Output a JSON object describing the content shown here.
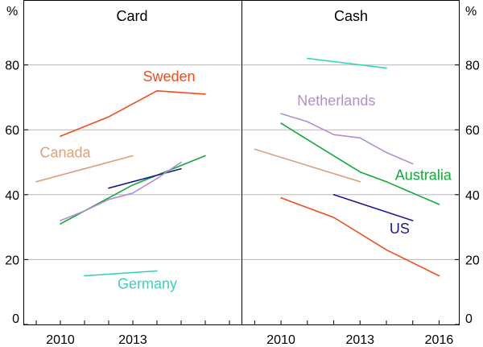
{
  "chart_data": {
    "type": "line",
    "y_unit": "%",
    "ylim": [
      0,
      100
    ],
    "yticks": [
      0,
      20,
      40,
      60,
      80
    ],
    "grid": true,
    "panels": [
      {
        "id": "card",
        "title": "Card",
        "xlim": [
          2008.5,
          2017.5
        ],
        "xticks": [
          2010,
          2013
        ],
        "series": [
          {
            "name": "Sweden",
            "color": "#f04e1d",
            "x": [
              2010,
              2012,
              2014,
              2016
            ],
            "y": [
              58,
              64,
              72,
              71
            ]
          },
          {
            "name": "Canada",
            "color": "#d9a27f",
            "x": [
              2009,
              2013
            ],
            "y": [
              44,
              52
            ]
          },
          {
            "name": "Australia",
            "color": "#14a83b",
            "x": [
              2010,
              2011,
              2012,
              2013,
              2014,
              2015,
              2016
            ],
            "y": [
              31,
              35,
              39,
              43,
              46,
              49,
              52
            ]
          },
          {
            "name": "US",
            "color": "#1b1b8f",
            "x": [
              2012,
              2015
            ],
            "y": [
              42,
              48
            ]
          },
          {
            "name": "Netherlands",
            "color": "#b08fd0",
            "x": [
              2010,
              2011,
              2012,
              2013,
              2014,
              2015
            ],
            "y": [
              32,
              35,
              38.5,
              40.5,
              45,
              50
            ]
          },
          {
            "name": "Germany",
            "color": "#37d3bb",
            "x": [
              2011,
              2014
            ],
            "y": [
              15,
              16.5
            ]
          }
        ],
        "labels": [
          {
            "series": "Sweden",
            "text": "Sweden",
            "x": 2014.5,
            "y": 75
          },
          {
            "series": "Canada",
            "text": "Canada",
            "x": 2010.2,
            "y": 51.5
          },
          {
            "series": "Germany",
            "text": "Germany",
            "x": 2013.6,
            "y": 11
          }
        ]
      },
      {
        "id": "cash",
        "title": "Cash",
        "xlim": [
          2008.5,
          2016.75
        ],
        "xticks": [
          2010,
          2013,
          2016
        ],
        "series": [
          {
            "name": "Germany",
            "color": "#37d3bb",
            "x": [
              2011,
              2014
            ],
            "y": [
              82,
              79
            ]
          },
          {
            "name": "Netherlands",
            "color": "#b08fd0",
            "x": [
              2010,
              2011,
              2012,
              2013,
              2014,
              2015
            ],
            "y": [
              65,
              62.5,
              58.5,
              57.5,
              53,
              49.5
            ]
          },
          {
            "name": "Canada",
            "color": "#d9a27f",
            "x": [
              2009,
              2013
            ],
            "y": [
              54,
              44
            ]
          },
          {
            "name": "Australia",
            "color": "#14a83b",
            "x": [
              2010,
              2011,
              2012,
              2013,
              2014,
              2015,
              2016
            ],
            "y": [
              62,
              57,
              52,
              47,
              44,
              40.5,
              37
            ]
          },
          {
            "name": "US",
            "color": "#1b1b8f",
            "x": [
              2012,
              2015
            ],
            "y": [
              40,
              32
            ]
          },
          {
            "name": "Sweden",
            "color": "#f04e1d",
            "x": [
              2010,
              2012,
              2014,
              2016
            ],
            "y": [
              39,
              33,
              23,
              15
            ]
          }
        ],
        "labels": [
          {
            "series": "Netherlands",
            "text": "Netherlands",
            "x": 2012.1,
            "y": 67.5
          },
          {
            "series": "Australia",
            "text": "Australia",
            "x": 2015.4,
            "y": 44.5
          },
          {
            "series": "US",
            "text": "US",
            "x": 2014.5,
            "y": 28
          }
        ]
      }
    ]
  }
}
